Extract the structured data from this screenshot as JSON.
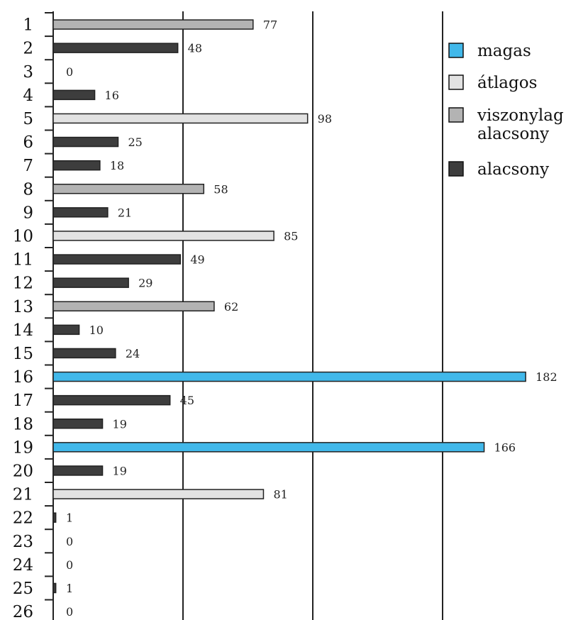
{
  "chart_data": {
    "type": "bar",
    "orientation": "horizontal",
    "title": "",
    "xlabel": "",
    "ylabel": "",
    "xlim": [
      0,
      200
    ],
    "grid": true,
    "legend_position": "top-right",
    "categories": [
      "1",
      "2",
      "3",
      "4",
      "5",
      "6",
      "7",
      "8",
      "9",
      "10",
      "11",
      "12",
      "13",
      "14",
      "15",
      "16",
      "17",
      "18",
      "19",
      "20",
      "21",
      "22",
      "23",
      "24",
      "25",
      "26"
    ],
    "values": [
      77,
      48,
      0,
      16,
      98,
      25,
      18,
      58,
      21,
      85,
      49,
      29,
      62,
      10,
      24,
      182,
      45,
      19,
      166,
      19,
      81,
      1,
      0,
      0,
      1,
      0
    ],
    "classes": [
      "viszonylag alacsony",
      "alacsony",
      "alacsony",
      "alacsony",
      "átlagos",
      "alacsony",
      "alacsony",
      "viszonylag alacsony",
      "alacsony",
      "átlagos",
      "alacsony",
      "alacsony",
      "viszonylag alacsony",
      "alacsony",
      "alacsony",
      "magas",
      "alacsony",
      "alacsony",
      "magas",
      "alacsony",
      "átlagos",
      "alacsony",
      "alacsony",
      "alacsony",
      "alacsony",
      "alacsony"
    ],
    "legend": [
      {
        "key": "magas",
        "lines": [
          "magas"
        ],
        "color": "#41b8ea"
      },
      {
        "key": "átlagos",
        "lines": [
          "átlagos"
        ],
        "color": "#e2e2e2"
      },
      {
        "key": "viszonylag alacsony",
        "lines": [
          "viszonylag",
          "alacsony"
        ],
        "color": "#b3b3b3"
      },
      {
        "key": "alacsony",
        "lines": [
          "alacsony"
        ],
        "color": "#3d3d3d"
      }
    ]
  }
}
